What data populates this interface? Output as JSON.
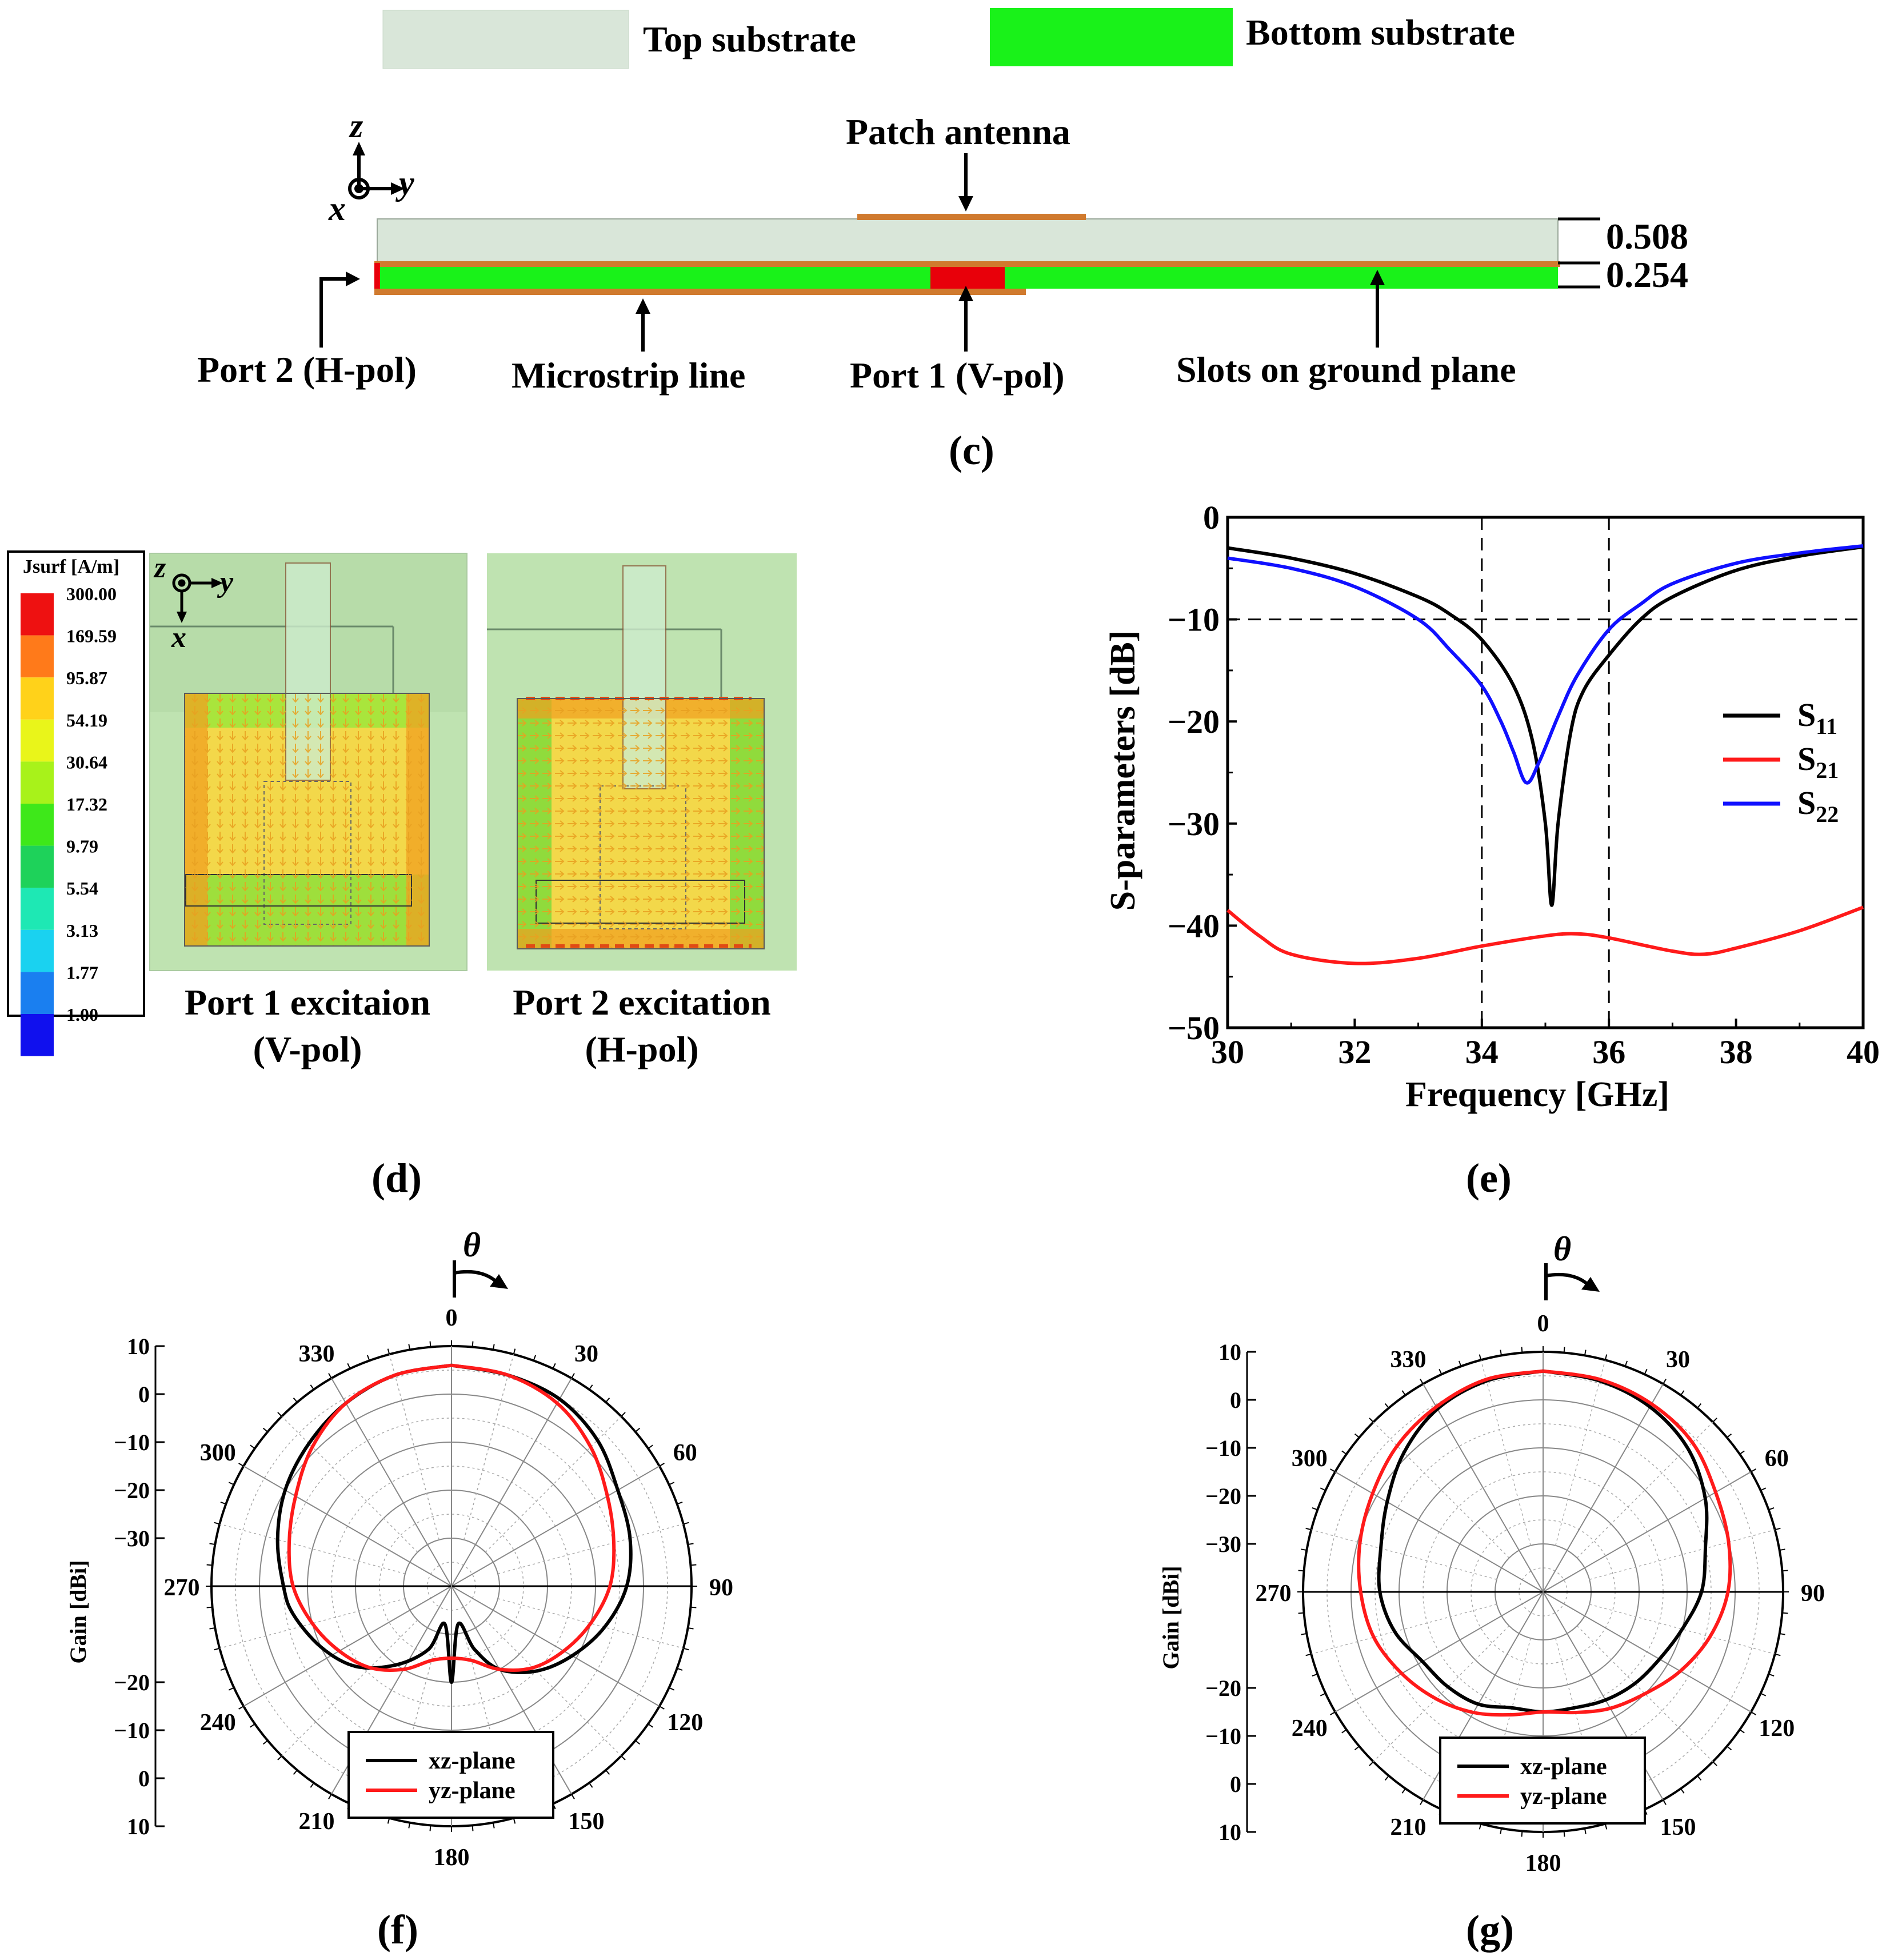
{
  "colors": {
    "top_substrate": "#d9e6d9",
    "bottom_substrate": "#19f219",
    "copper": "#d07a2e",
    "port": "#e8000a",
    "s11": "#000000",
    "s21": "#ff1a1a",
    "s22": "#1010ff",
    "panel_bg": "#bfe3b1",
    "feed": "#cdeccd"
  },
  "legend_top": {
    "top_substrate": "Top substrate",
    "bottom_substrate": "Bottom substrate"
  },
  "panel_c": {
    "label": "(c)",
    "axes": {
      "z": "z",
      "y": "y",
      "x": "x"
    },
    "patch_antenna": "Patch antenna",
    "dim_top": "0.508",
    "dim_bottom": "0.254",
    "port2": "Port 2 (H-pol)",
    "microstrip": "Microstrip line",
    "port1": "Port 1 (V-pol)",
    "slots": "Slots on ground plane"
  },
  "panel_d": {
    "label": "(d)",
    "colorbar_title": "Jsurf [A/m]",
    "colorbar_values": [
      "300.00",
      "169.59",
      "95.87",
      "54.19",
      "30.64",
      "17.32",
      "9.79",
      "5.54",
      "3.13",
      "1.77",
      "1.00"
    ],
    "colorbar_colors": [
      "#ee1111",
      "#ff7a1a",
      "#ffd21a",
      "#e9f51a",
      "#a8f21a",
      "#3ee81a",
      "#1ed25a",
      "#1ee8b4",
      "#1ad2f0",
      "#1a7ff0",
      "#1010ee"
    ],
    "axes": {
      "z": "z",
      "y": "y",
      "x": "x"
    },
    "caption1_line1": "Port 1 excitaion",
    "caption1_line2": "(V-pol)",
    "caption2_line1": "Port 2 excitation",
    "caption2_line2": "(H-pol)"
  },
  "panel_e": {
    "label": "(e)"
  },
  "panel_f": {
    "label": "(f)",
    "theta": "θ"
  },
  "panel_g": {
    "label": "(g)",
    "theta": "θ"
  },
  "chart_data": [
    {
      "id": "e",
      "type": "line",
      "xlabel": "Frequency [GHz]",
      "ylabel": "S-parameters [dB]",
      "xlim": [
        30,
        40
      ],
      "ylim": [
        -50,
        0
      ],
      "xticks": [
        30,
        32,
        34,
        36,
        38,
        40
      ],
      "yticks": [
        0,
        -10,
        -20,
        -30,
        -40,
        -50
      ],
      "ytick_labels": [
        "0",
        "−10",
        "−20",
        "−30",
        "−40",
        "−50"
      ],
      "reference_lines": {
        "x": [
          34,
          36
        ],
        "y": [
          -10
        ]
      },
      "legend_position": "right",
      "series": [
        {
          "name": "S",
          "sub": "11",
          "color": "#000000",
          "x": [
            30,
            31,
            32,
            33,
            33.5,
            34,
            34.5,
            34.8,
            35,
            35.1,
            35.2,
            35.4,
            35.6,
            36,
            36.5,
            37,
            38,
            39,
            40
          ],
          "y": [
            -3,
            -4,
            -5.5,
            -7.8,
            -9.5,
            -12,
            -16.5,
            -22,
            -30,
            -38,
            -30,
            -21,
            -17,
            -13.5,
            -10,
            -7.8,
            -5.2,
            -3.8,
            -2.9
          ]
        },
        {
          "name": "S",
          "sub": "21",
          "color": "#ff1a1a",
          "x": [
            30,
            30.5,
            31,
            32,
            33,
            34,
            35,
            35.5,
            36,
            37,
            37.5,
            38,
            39,
            40
          ],
          "y": [
            -38.5,
            -41,
            -42.8,
            -43.7,
            -43.2,
            -42,
            -41,
            -40.8,
            -41.2,
            -42.5,
            -42.8,
            -42.2,
            -40.5,
            -38.2
          ]
        },
        {
          "name": "S",
          "sub": "22",
          "color": "#1010ff",
          "x": [
            30,
            31,
            32,
            33,
            33.5,
            34,
            34.3,
            34.5,
            34.7,
            34.9,
            35.2,
            35.5,
            36,
            36.5,
            37,
            38,
            39,
            40
          ],
          "y": [
            -4,
            -5,
            -6.8,
            -10,
            -13,
            -16.5,
            -20,
            -23,
            -26,
            -24,
            -19.5,
            -15.5,
            -11,
            -8.5,
            -6.5,
            -4.5,
            -3.5,
            -2.8
          ]
        }
      ]
    },
    {
      "id": "f",
      "type": "polar",
      "rlabel": "Gain [dBi]",
      "rlim": [
        -40,
        10
      ],
      "radial_tick_labels": [
        "10",
        "0",
        "−10",
        "−20",
        "−30",
        "−20",
        "−10",
        "0",
        "10"
      ],
      "angle_labels": [
        "0",
        "30",
        "60",
        "90",
        "120",
        "150",
        "180",
        "210",
        "240",
        "270",
        "300",
        "330"
      ],
      "legend": [
        "xz-plane",
        "yz-plane"
      ],
      "legend_position": "bottom-center",
      "series": [
        {
          "name": "xz-plane",
          "color": "#000000",
          "theta": [
            0,
            15,
            30,
            45,
            60,
            75,
            90,
            105,
            120,
            135,
            150,
            160,
            170,
            180,
            190,
            200,
            215,
            230,
            245,
            260,
            270,
            285,
            300,
            315,
            330,
            345,
            360
          ],
          "gain": [
            6,
            5.5,
            5,
            3,
            0,
            -1.5,
            -3.5,
            -7,
            -11,
            -15,
            -20,
            -26,
            -32,
            -20,
            -32,
            -26,
            -20,
            -14,
            -10,
            -6.5,
            -5,
            -2.5,
            0,
            2,
            4,
            5.5,
            6
          ]
        },
        {
          "name": "yz-plane",
          "color": "#ff1a1a",
          "theta": [
            0,
            15,
            30,
            45,
            60,
            75,
            90,
            105,
            120,
            135,
            150,
            165,
            180,
            195,
            210,
            225,
            240,
            255,
            270,
            285,
            300,
            315,
            330,
            345,
            360
          ],
          "gain": [
            6,
            5.5,
            4,
            1,
            -2.5,
            -5,
            -7,
            -10,
            -13,
            -16,
            -20,
            -24,
            -25,
            -24,
            -20,
            -16,
            -13,
            -10,
            -7,
            -5,
            -2.5,
            1,
            4,
            5.5,
            6
          ]
        }
      ]
    },
    {
      "id": "g",
      "type": "polar",
      "rlabel": "Gain [dBi]",
      "rlim": [
        -40,
        10
      ],
      "radial_tick_labels": [
        "10",
        "0",
        "−10",
        "−20",
        "−30",
        "−20",
        "−10",
        "0",
        "10"
      ],
      "angle_labels": [
        "0",
        "30",
        "60",
        "90",
        "120",
        "150",
        "180",
        "210",
        "240",
        "270",
        "300",
        "330"
      ],
      "legend": [
        "xz-plane",
        "yz-plane"
      ],
      "legend_position": "bottom-center",
      "series": [
        {
          "name": "xz-plane",
          "color": "#000000",
          "theta": [
            0,
            15,
            30,
            45,
            60,
            75,
            90,
            105,
            120,
            135,
            150,
            165,
            180,
            195,
            210,
            225,
            240,
            255,
            270,
            285,
            300,
            315,
            330,
            345,
            360
          ],
          "gain": [
            6,
            5.5,
            4.5,
            2.5,
            -1,
            -5,
            -7,
            -10,
            -12,
            -13,
            -14,
            -15,
            -15,
            -15,
            -13,
            -12,
            -11,
            -8,
            -6,
            -5,
            -2.5,
            1,
            4,
            5.5,
            6
          ]
        },
        {
          "name": "yz-plane",
          "color": "#ff1a1a",
          "theta": [
            0,
            15,
            30,
            45,
            60,
            75,
            90,
            105,
            120,
            135,
            150,
            165,
            180,
            195,
            210,
            225,
            240,
            255,
            270,
            285,
            300,
            315,
            330,
            345,
            360
          ],
          "gain": [
            6,
            5.8,
            5.2,
            4,
            1.5,
            0,
            -1.5,
            -4,
            -7,
            -10,
            -12,
            -14,
            -15,
            -13.5,
            -11,
            -8.5,
            -6,
            -3.5,
            -2,
            -0.5,
            1,
            3,
            4.5,
            5.8,
            6
          ]
        }
      ]
    }
  ]
}
